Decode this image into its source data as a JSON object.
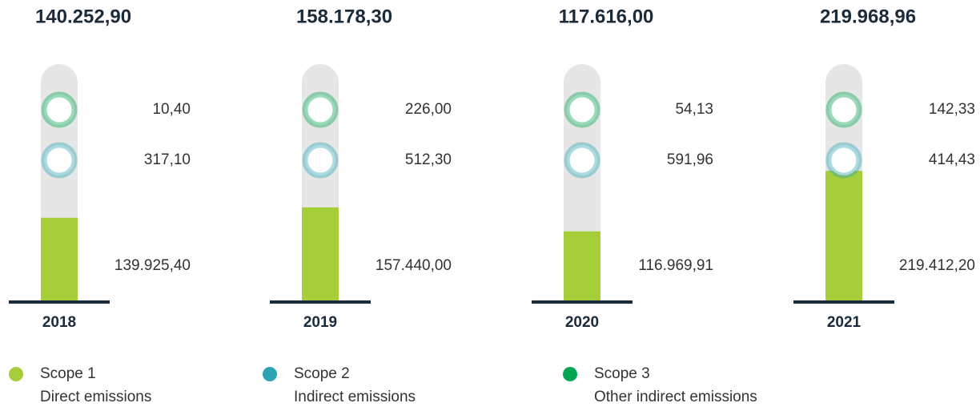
{
  "chart_data": {
    "type": "bar",
    "categories": [
      "2018",
      "2019",
      "2020",
      "2021"
    ],
    "totals": [
      140252.9,
      158178.3,
      117616,
      219968.96
    ],
    "totals_labels": [
      "140.252,90",
      "158.178,30",
      "117.616,00",
      "219.968,96"
    ],
    "ylim": [
      0,
      400000
    ],
    "series": [
      {
        "name": "Scope 1",
        "description": "Direct emissions",
        "color": "#a6ce39",
        "values": [
          139925.4,
          157440,
          116969.91,
          219412.2
        ],
        "value_labels": [
          "139.925,40",
          "157.440,00",
          "116.969,91",
          "219.412,20"
        ]
      },
      {
        "name": "Scope 2",
        "description": "Indirect emissions",
        "color": "#2aa5b3",
        "values": [
          317.1,
          512.3,
          591.96,
          414.43
        ],
        "value_labels": [
          "317,10",
          "512,30",
          "591,96",
          "414,43"
        ]
      },
      {
        "name": "Scope 3",
        "description": "Other indirect emissions",
        "color": "#00a651",
        "values": [
          10.4,
          226,
          54.13,
          142.33
        ],
        "value_labels": [
          "10,40",
          "226,00",
          "54,13",
          "142,33"
        ]
      }
    ]
  }
}
